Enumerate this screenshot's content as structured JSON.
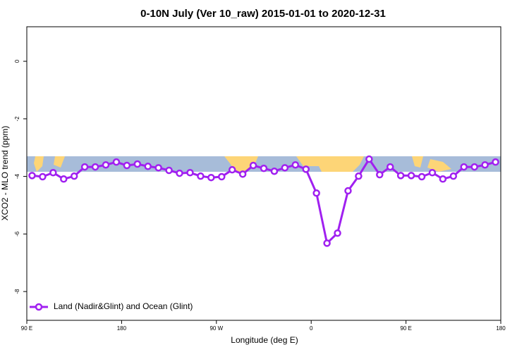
{
  "chart_data": {
    "type": "line",
    "title": "0-10N July (Ver 10_raw)   2015-01-01 to 2020-12-31",
    "x_label": "Longitude (deg E)",
    "y_label": "XCO2 - MLO trend (ppm)",
    "x": [
      95,
      105,
      115,
      125,
      135,
      145,
      155,
      165,
      175,
      185,
      195,
      205,
      215,
      225,
      235,
      245,
      255,
      265,
      275,
      285,
      295,
      305,
      315,
      325,
      335,
      345,
      355,
      365,
      375,
      385,
      395,
      405,
      415,
      425,
      435,
      445,
      455,
      465,
      475,
      485,
      495,
      505,
      515,
      525,
      535
    ],
    "series": [
      {
        "name": "Land (Nadir&Glint) and Ocean (Glint)",
        "color": "#a020f0",
        "values": [
          -3.97,
          -4.01,
          -3.87,
          -4.09,
          -3.99,
          -3.67,
          -3.67,
          -3.6,
          -3.5,
          -3.62,
          -3.57,
          -3.65,
          -3.7,
          -3.79,
          -3.89,
          -3.87,
          -3.99,
          -4.04,
          -4.01,
          -3.77,
          -3.92,
          -3.62,
          -3.72,
          -3.82,
          -3.7,
          -3.6,
          -3.75,
          -4.58,
          -6.32,
          -5.97,
          -4.5,
          -3.99,
          -3.4,
          -3.94,
          -3.67,
          -3.97,
          -3.97,
          -4.01,
          -3.87,
          -4.09,
          -3.99,
          -3.67,
          -3.67,
          -3.6,
          -3.5
        ]
      }
    ],
    "xlim": [
      90,
      540
    ],
    "ylim": [
      -9,
      1.2
    ],
    "xticks": [
      {
        "value": 90,
        "label": "90 E"
      },
      {
        "value": 180,
        "label": "180"
      },
      {
        "value": 270,
        "label": "90 W"
      },
      {
        "value": 360,
        "label": "0"
      },
      {
        "value": 450,
        "label": "90 E"
      },
      {
        "value": 540,
        "label": "180"
      }
    ],
    "yticks": [
      0,
      -2,
      -4,
      -6,
      -8
    ],
    "legend": "bottom-left"
  }
}
